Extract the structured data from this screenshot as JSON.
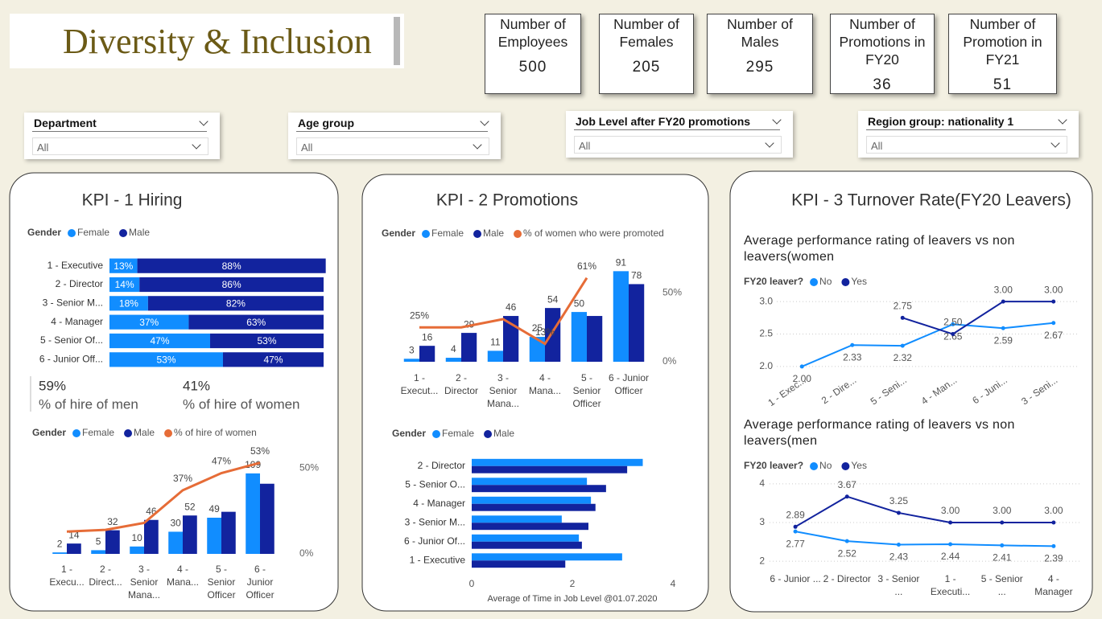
{
  "header": {
    "title": "Diversity & Inclusion"
  },
  "cards": [
    {
      "label": "Number of Employees",
      "value": 500
    },
    {
      "label": "Number of Females",
      "value": 205
    },
    {
      "label": "Number of Males",
      "value": 295
    },
    {
      "label": "Number of Promotions in FY20",
      "value": 36
    },
    {
      "label": "Number of Promotion in FY21",
      "value": 51
    }
  ],
  "slicers": [
    {
      "label": "Department",
      "value": "All"
    },
    {
      "label": "Age group",
      "value": "All"
    },
    {
      "label": "Job Level after FY20 promotions",
      "value": "All"
    },
    {
      "label": "Region group: nationality 1",
      "value": "All"
    }
  ],
  "panels": [
    {
      "title": "KPI - 1 Hiring",
      "stats": [
        {
          "value": "59%",
          "label": "% of hire of men"
        },
        {
          "value": "41%",
          "label": "% of hire of women"
        }
      ]
    },
    {
      "title": "KPI - 2 Promotions"
    },
    {
      "title": "KPI - 3 Turnover Rate(FY20 Leavers)"
    }
  ],
  "chart_data": [
    {
      "type": "bar",
      "orientation": "horizontal",
      "stacked": true,
      "legend_title": "Gender",
      "categories": [
        "1 - Executive",
        "2 - Director",
        "3 - Senior M...",
        "4 - Manager",
        "5 - Senior Of...",
        "6 - Junior Off..."
      ],
      "xlim": [
        0,
        100
      ],
      "series": [
        {
          "name": "Female",
          "color": "#118DFF",
          "values": [
            13,
            14,
            18,
            37,
            47,
            53
          ],
          "value_labels": [
            "13%",
            "14%",
            "18%",
            "37%",
            "47%",
            "53%"
          ]
        },
        {
          "name": "Male",
          "color": "#12239E",
          "values": [
            88,
            86,
            82,
            63,
            53,
            47
          ],
          "value_labels": [
            "88%",
            "86%",
            "82%",
            "63%",
            "53%",
            "47%"
          ]
        }
      ]
    },
    {
      "type": "bar",
      "orientation": "vertical",
      "legend_title": "Gender",
      "categories": [
        "1 - Execu...",
        "2 - Direct...",
        "3 - Senior Mana...",
        "4 - Mana...",
        "5 - Senior Officer",
        "6 - Junior Officer"
      ],
      "ylim": [
        0,
        135
      ],
      "y2lim": [
        0,
        58
      ],
      "y2ticks": [
        {
          "value": 0,
          "label": "0%"
        },
        {
          "value": 50,
          "label": "50%"
        }
      ],
      "series": [
        {
          "name": "Female",
          "color": "#118DFF",
          "values": [
            2,
            5,
            10,
            30,
            49,
            109
          ],
          "value_labels": [
            "2",
            "5",
            "10",
            "30",
            "49",
            "109"
          ]
        },
        {
          "name": "Male",
          "color": "#12239E",
          "values": [
            14,
            32,
            46,
            52,
            57,
            95
          ],
          "value_labels": [
            "14",
            "32",
            "46",
            "52",
            null,
            null
          ]
        },
        {
          "name": "% of hire of women",
          "type": "line",
          "axis": "y2",
          "color": "#E66C37",
          "values": [
            13,
            14,
            18,
            37,
            47,
            53
          ],
          "value_labels": [
            null,
            null,
            null,
            "37%",
            "47%",
            "53%"
          ]
        }
      ]
    },
    {
      "type": "bar",
      "orientation": "vertical",
      "legend_title": "Gender",
      "categories": [
        "1 - Execut...",
        "2 - Director",
        "3 - Senior Mana...",
        "4 - Mana...",
        "5 - Senior Officer",
        "6 - Junior Officer"
      ],
      "ylim": [
        0,
        105
      ],
      "y2lim": [
        0,
        76
      ],
      "y2ticks": [
        {
          "value": 0,
          "label": "0%"
        },
        {
          "value": 50,
          "label": "50%"
        }
      ],
      "series": [
        {
          "name": "Female",
          "color": "#118DFF",
          "values": [
            3,
            4,
            11,
            25,
            50,
            91
          ],
          "value_labels": [
            "3",
            "4",
            "11",
            "25",
            "50",
            "91"
          ]
        },
        {
          "name": "Male",
          "color": "#12239E",
          "values": [
            16,
            29,
            46,
            54,
            46,
            78
          ],
          "value_labels": [
            "16",
            "29",
            "46",
            "54",
            null,
            "78"
          ]
        },
        {
          "name": "% of women who were promoted",
          "type": "line",
          "axis": "y2",
          "color": "#E66C37",
          "values": [
            25,
            25,
            31,
            13,
            61,
            null
          ],
          "value_labels": [
            "25%",
            null,
            null,
            "13%",
            "61%",
            null
          ]
        }
      ]
    },
    {
      "type": "bar",
      "orientation": "horizontal",
      "stacked": false,
      "legend_title": "Gender",
      "xlabel": "Average of Time in Job Level @01.07.2020",
      "categories": [
        "2 - Director",
        "5 - Senior O...",
        "4 - Manager",
        "3 - Senior M...",
        "6 - Junior Of...",
        "1 - Executive"
      ],
      "xlim": [
        0,
        4
      ],
      "xticks": [
        0,
        2,
        4
      ],
      "series": [
        {
          "name": "Female",
          "color": "#118DFF",
          "values": [
            3.4,
            2.29,
            2.37,
            1.79,
            2.13,
            2.99
          ]
        },
        {
          "name": "Male",
          "color": "#12239E",
          "values": [
            3.09,
            2.67,
            2.46,
            2.32,
            2.19,
            1.86
          ]
        }
      ]
    },
    {
      "type": "line",
      "title": "Average performance rating of leavers vs non leavers(women",
      "legend_title": "FY20 leaver?",
      "grid": true,
      "categories": [
        "1 - Exec...",
        "2 - Dire...",
        "5 - Seni...",
        "4 - Man...",
        "6 - Juni...",
        "3 - Seni..."
      ],
      "ylim": [
        1.9,
        3.15
      ],
      "yticks": [
        {
          "value": 2,
          "label": "2.0"
        },
        {
          "value": 2.5,
          "label": "2.5"
        },
        {
          "value": 3,
          "label": "3.0"
        }
      ],
      "series": [
        {
          "name": "No",
          "color": "#118DFF",
          "values": [
            2.0,
            2.33,
            2.32,
            2.65,
            2.59,
            2.67
          ],
          "value_labels": [
            "2.00",
            "2.33",
            "2.32",
            "2.65",
            "2.59",
            "2.67"
          ]
        },
        {
          "name": "Yes",
          "color": "#12239E",
          "values": [
            null,
            null,
            2.75,
            2.5,
            3.0,
            3.0
          ],
          "value_labels": [
            null,
            null,
            "2.75",
            "2.50",
            "3.00",
            "3.00"
          ]
        }
      ]
    },
    {
      "type": "line",
      "title": "Average performance rating of leavers vs non leavers(men",
      "legend_title": "FY20 leaver?",
      "grid": true,
      "categories": [
        "6 - Junior ...",
        "2 - Director",
        "3 - Senior ...",
        "1 - Executi...",
        "5 - Senior ...",
        "4 - Manager"
      ],
      "ylim": [
        1.9,
        4.1
      ],
      "yticks": [
        2,
        3,
        4
      ],
      "series": [
        {
          "name": "No",
          "color": "#118DFF",
          "values": [
            2.77,
            2.52,
            2.43,
            2.44,
            2.41,
            2.39
          ],
          "value_labels": [
            "2.77",
            "2.52",
            "2.43",
            "2.44",
            "2.41",
            "2.39"
          ]
        },
        {
          "name": "Yes",
          "color": "#12239E",
          "values": [
            2.89,
            3.67,
            3.25,
            3.0,
            3.0,
            3.0
          ],
          "value_labels": [
            "2.89",
            "3.67",
            "3.25",
            "3.00",
            "3.00",
            "3.00"
          ]
        }
      ]
    }
  ]
}
